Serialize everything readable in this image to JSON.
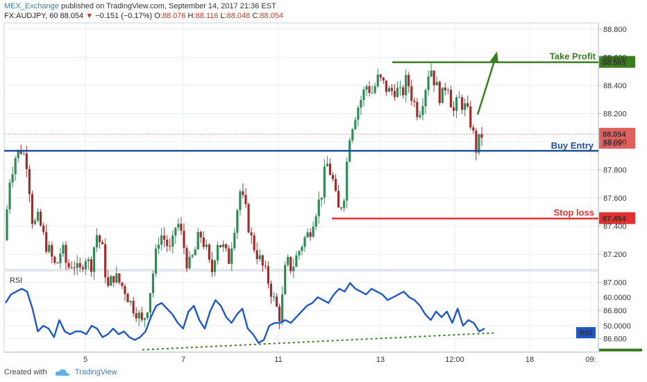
{
  "header": {
    "username": "MEX_Exchange",
    "published_text": "published on TradingView.com, September 14, 2017 21:36 EST",
    "symbol": "FX:AUDJPY, 60",
    "last": "88.054",
    "change_arrow": "▼",
    "change": "−0.151 (−0.17%)",
    "o_label": "O:",
    "o_value": "88.076",
    "h_label": "H:",
    "h_value": "88.116",
    "l_label": "L:",
    "l_value": "88.048",
    "c_label": "C:",
    "c_value": "88.054"
  },
  "footer": {
    "created_with": "Created with",
    "brand": "TradingView"
  },
  "colors": {
    "up": "#2e8b57",
    "down": "#a02c2c",
    "rsi_line": "#1e56c8",
    "take_profit": "#3a7d1e",
    "buy_entry": "#1f4f9c",
    "stop_loss": "#e03030",
    "grid": "#e8eef5",
    "price_line": "#e06060"
  },
  "chart_data": [
    {
      "type": "candlestick",
      "symbol": "FX:AUDJPY",
      "interval": "60",
      "y_ticks": [
        "88.800",
        "88.600",
        "88.400",
        "88.200",
        "88.000",
        "87.800",
        "87.600",
        "87.400",
        "87.200",
        "87.000",
        "86.800",
        "86.600"
      ],
      "ylim": [
        86.5,
        88.9
      ],
      "x_ticks": [
        "5",
        "7",
        "11",
        "13",
        "12:00",
        "18",
        "09:"
      ],
      "price_label": "88.054",
      "countdown": "24:03",
      "levels": [
        {
          "name": "Take Profit",
          "value": 88.565,
          "label": "88.565"
        },
        {
          "name": "Buy Entry",
          "value": 87.935,
          "label": ""
        },
        {
          "name": "Stop loss",
          "value": 87.454,
          "label": "87.454"
        }
      ],
      "path_points": [
        87.3,
        87.75,
        87.9,
        87.95,
        87.85,
        87.4,
        87.45,
        87.3,
        87.2,
        87.1,
        87.25,
        87.1,
        87.15,
        87.05,
        87.2,
        87.1,
        87.35,
        87.25,
        86.95,
        87.05,
        87.0,
        86.95,
        86.85,
        86.8,
        86.7,
        86.85,
        87.1,
        87.35,
        87.3,
        87.2,
        87.45,
        87.3,
        87.1,
        87.2,
        87.35,
        87.25,
        87.05,
        87.3,
        87.25,
        87.15,
        87.4,
        87.65,
        87.5,
        87.3,
        87.2,
        87.1,
        87.0,
        86.85,
        86.75,
        87.15,
        87.1,
        87.2,
        87.3,
        87.35,
        87.5,
        87.6,
        87.85,
        87.75,
        87.5,
        87.6,
        88.05,
        88.2,
        88.3,
        88.4,
        88.35,
        88.45,
        88.4,
        88.35,
        88.38,
        88.32,
        88.45,
        88.3,
        88.2,
        88.35,
        88.55,
        88.4,
        88.3,
        88.45,
        88.2,
        88.3,
        88.25,
        88.15,
        87.95,
        88.05
      ]
    },
    {
      "type": "line",
      "indicator": "RSI",
      "label": "RSI",
      "y_ticks": [
        "60.0000",
        "50.0000"
      ],
      "ylim": [
        42,
        68
      ],
      "values": [
        58,
        61,
        62,
        63,
        62,
        56,
        48,
        50,
        49,
        46,
        52,
        48,
        47,
        48,
        48,
        47,
        50,
        49,
        46,
        47,
        49,
        47,
        48,
        46,
        45,
        46,
        48,
        53,
        57,
        58,
        56,
        54,
        51,
        49,
        55,
        57,
        52,
        49,
        55,
        59,
        57,
        53,
        51,
        54,
        56,
        49,
        47,
        44,
        45,
        50,
        51,
        51,
        52,
        51,
        53,
        55,
        57,
        58,
        60,
        59,
        58,
        61,
        63,
        62,
        65,
        63,
        62,
        61,
        63,
        62,
        61,
        59,
        60,
        61,
        62,
        60,
        59,
        57,
        54,
        52,
        55,
        53,
        55,
        51,
        56,
        50,
        52,
        51,
        48,
        49
      ],
      "trend_start": 43.5,
      "trend_end": 47.5
    }
  ]
}
